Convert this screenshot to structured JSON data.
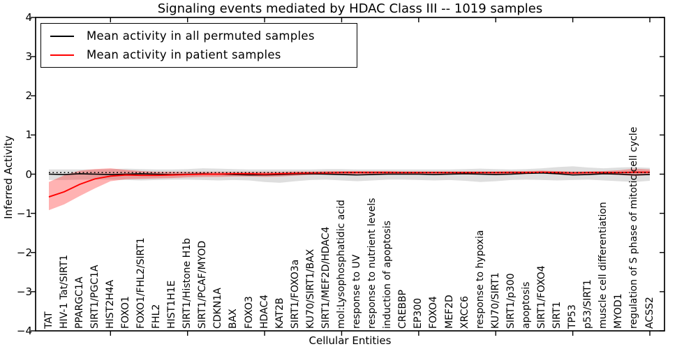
{
  "window": {
    "background": "#ffffff"
  },
  "chart_data": {
    "type": "line",
    "title": "Signaling events mediated by HDAC Class III -- 1019 samples",
    "xlabel": "Cellular Entities",
    "ylabel": "Inferred Activity",
    "ylim": [
      -4,
      4
    ],
    "yticks": [
      4,
      3,
      2,
      1,
      0,
      -1,
      -2,
      -3,
      -4
    ],
    "grid": false,
    "legend_position": "upper left",
    "frame_color": "#000000",
    "categories": [
      "TAT",
      "HIV-1 Tat/SIRT1",
      "PPARGC1A",
      "SIRT1/PGC1A",
      "HIST2H4A",
      "FOXO1",
      "FOXO1/FHL2/SIRT1",
      "FHL2",
      "HIST1H1E",
      "SIRT1/Histone H1b",
      "SIRT1/PCAF/MYOD",
      "CDKN1A",
      "BAX",
      "FOXO3",
      "HDAC4",
      "KAT2B",
      "SIRT1/FOXO3a",
      "KU70/SIRT1/BAX",
      "SIRT1/MEF2D/HDAC4",
      "mol:Lysophosphatidic acid",
      "response to UV",
      "response to nutrient levels",
      "induction of apoptosis",
      "CREBBP",
      "EP300",
      "FOXO4",
      "MEF2D",
      "XRCC6",
      "response to hypoxia",
      "KU70/SIRT1",
      "SIRT1/p300",
      "apoptosis",
      "SIRT1/FOXO4",
      "SIRT1",
      "TP53",
      "p53/SIRT1",
      "muscle cell differentiation",
      "MYOD1",
      "regulation of S phase of mitotic cell cycle",
      "ACSS2"
    ],
    "series": [
      {
        "name": "Mean activity in all permuted samples",
        "color": "#000000",
        "values": [
          0.0,
          -0.01,
          0.01,
          0.0,
          -0.01,
          0.0,
          0.01,
          0.0,
          -0.01,
          0.0,
          0.01,
          0.0,
          -0.01,
          -0.02,
          -0.02,
          -0.01,
          0.0,
          0.01,
          0.0,
          -0.01,
          -0.02,
          -0.01,
          0.0,
          0.0,
          0.0,
          -0.01,
          0.0,
          0.01,
          0.0,
          -0.01,
          0.0,
          0.02,
          0.03,
          0.01,
          -0.02,
          -0.01,
          0.01,
          0.0,
          -0.02,
          -0.01
        ],
        "band_upper": [
          0.12,
          0.12,
          0.12,
          0.12,
          0.13,
          0.14,
          0.13,
          0.12,
          0.12,
          0.13,
          0.15,
          0.14,
          0.13,
          0.12,
          0.12,
          0.12,
          0.12,
          0.12,
          0.13,
          0.13,
          0.12,
          0.12,
          0.12,
          0.12,
          0.12,
          0.12,
          0.12,
          0.13,
          0.14,
          0.13,
          0.12,
          0.13,
          0.15,
          0.18,
          0.2,
          0.17,
          0.15,
          0.17,
          0.18,
          0.16
        ],
        "band_lower": [
          -0.15,
          -0.15,
          -0.14,
          -0.14,
          -0.14,
          -0.15,
          -0.16,
          -0.15,
          -0.14,
          -0.14,
          -0.15,
          -0.16,
          -0.15,
          -0.16,
          -0.2,
          -0.22,
          -0.18,
          -0.15,
          -0.14,
          -0.16,
          -0.18,
          -0.16,
          -0.14,
          -0.14,
          -0.15,
          -0.16,
          -0.15,
          -0.17,
          -0.2,
          -0.18,
          -0.15,
          -0.14,
          -0.15,
          -0.16,
          -0.15,
          -0.14,
          -0.16,
          -0.18,
          -0.2,
          -0.17
        ],
        "band_color": "#000000",
        "band_opacity": 0.13
      },
      {
        "name": "Mean activity in patient samples",
        "color": "#ff0000",
        "values": [
          -0.58,
          -0.45,
          -0.26,
          -0.12,
          -0.05,
          -0.02,
          -0.03,
          -0.03,
          -0.02,
          -0.01,
          0.0,
          0.0,
          0.01,
          0.01,
          0.0,
          0.01,
          0.02,
          0.03,
          0.03,
          0.04,
          0.04,
          0.04,
          0.04,
          0.04,
          0.04,
          0.04,
          0.04,
          0.04,
          0.04,
          0.04,
          0.04,
          0.04,
          0.05,
          0.04,
          0.03,
          0.04,
          0.04,
          0.04,
          0.05,
          0.05
        ],
        "band_upper": [
          -0.2,
          -0.03,
          0.09,
          0.13,
          0.15,
          0.11,
          0.08,
          0.06,
          0.06,
          0.06,
          0.06,
          0.06,
          0.06,
          0.06,
          0.06,
          0.06,
          0.07,
          0.07,
          0.08,
          0.08,
          0.08,
          0.08,
          0.08,
          0.07,
          0.07,
          0.07,
          0.07,
          0.07,
          0.07,
          0.07,
          0.08,
          0.08,
          0.09,
          0.08,
          0.07,
          0.07,
          0.08,
          0.1,
          0.14,
          0.12
        ],
        "band_lower": [
          -0.92,
          -0.77,
          -0.56,
          -0.36,
          -0.18,
          -0.13,
          -0.12,
          -0.11,
          -0.1,
          -0.08,
          -0.07,
          -0.07,
          -0.06,
          -0.06,
          -0.07,
          -0.06,
          -0.04,
          -0.02,
          -0.01,
          0.0,
          0.0,
          0.0,
          0.0,
          0.0,
          0.01,
          0.01,
          0.01,
          0.01,
          0.0,
          0.0,
          0.01,
          0.01,
          0.02,
          0.0,
          -0.01,
          0.0,
          0.0,
          -0.02,
          -0.05,
          -0.02
        ],
        "band_color": "#ff0000",
        "band_opacity": 0.3
      }
    ],
    "reference_line": {
      "value": 0.04,
      "style": "dotted",
      "color": "#000000"
    },
    "frame_tick_indices": [
      4,
      9,
      14,
      19,
      24,
      29,
      34,
      39
    ]
  }
}
